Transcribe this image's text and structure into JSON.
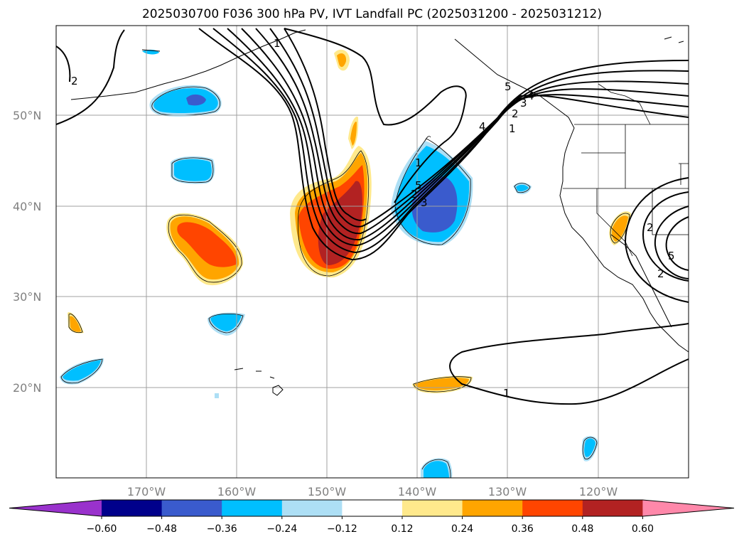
{
  "title": "2025030700 F036 300 hPa PV, IVT Landfall PC (2025031200 - 2025031212)",
  "lat_labels": [
    "50°N",
    "40°N",
    "30°N",
    "20°N"
  ],
  "lon_labels": [
    "170°W",
    "160°W",
    "150°W",
    "140°W",
    "130°W",
    "120°W"
  ],
  "colorbar": {
    "ticks": [
      "−0.60",
      "−0.48",
      "−0.36",
      "−0.24",
      "−0.12",
      "0.12",
      "0.24",
      "0.36",
      "0.48",
      "0.60"
    ],
    "colors": [
      "#9932CC",
      "#00008B",
      "#3A5BCD",
      "#00BFFF",
      "#ADDFF5",
      "#FFFFFF",
      "#FFE98C",
      "#FFA500",
      "#FF4500",
      "#B22222",
      "#FF88AA"
    ]
  },
  "contour_labels": [
    "2",
    "1",
    "2",
    "3",
    "4",
    "5",
    "1",
    "2",
    "3",
    "4",
    "5",
    "1",
    "2",
    "5",
    "2",
    "1"
  ]
}
